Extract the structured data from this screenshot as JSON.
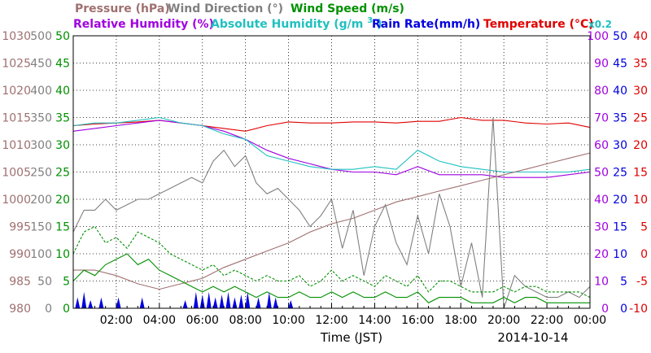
{
  "chart_data": {
    "type": "line",
    "date": "2014-10-14",
    "xlabel": "Time (JST)",
    "x_ticks": [
      "02:00",
      "04:00",
      "06:00",
      "08:00",
      "10:00",
      "12:00",
      "14:00",
      "16:00",
      "18:00",
      "20:00",
      "22:00",
      "00:00"
    ],
    "x_range_hours": [
      0,
      24
    ],
    "grid": true,
    "legend": {
      "row1": [
        {
          "label": "Pressure (hPa)",
          "color": "#a07070"
        },
        {
          "label": "Wind Direction (°)",
          "color": "#808080"
        },
        {
          "label": "Wind Speed (m/s)",
          "color": "#009000"
        }
      ],
      "row2": [
        {
          "label": "Relative Humidity (%)",
          "color": "#a000e0"
        },
        {
          "label": "Absolute Humidity (g/m",
          "sup": "3",
          "suffix": ")",
          "color": "#20c0c0"
        },
        {
          "label": "Rain Rate(mm/h)",
          "color": "#0000e0"
        },
        {
          "label": "Temperature (°C)",
          "color": "#e00000"
        },
        {
          "label": "x0.2",
          "color": "#20c0c0"
        }
      ]
    },
    "axes": {
      "pressure": {
        "ticks": [
          "1030",
          "1025",
          "1020",
          "1015",
          "1010",
          "1005",
          "1000",
          "995",
          "990",
          "985",
          "980"
        ],
        "range": [
          980,
          1030
        ],
        "color": "#a07070"
      },
      "wind_direction": {
        "ticks": [
          "500",
          "450",
          "400",
          "350",
          "300",
          "250",
          "200",
          "150",
          "100",
          "50",
          "0"
        ],
        "range": [
          0,
          500
        ],
        "color": "#808080"
      },
      "wind_speed": {
        "ticks": [
          "50",
          "45",
          "40",
          "35",
          "30",
          "25",
          "20",
          "15",
          "10",
          "5",
          "0"
        ],
        "range": [
          0,
          50
        ],
        "color": "#009000"
      },
      "humidity": {
        "ticks": [
          "100",
          "90",
          "80",
          "70",
          "60",
          "50",
          "40",
          "30",
          "20",
          "10",
          "0"
        ],
        "range": [
          0,
          100
        ],
        "color": "#a000e0"
      },
      "rain_rate": {
        "ticks": [
          "50",
          "45",
          "40",
          "35",
          "30",
          "25",
          "20",
          "15",
          "10",
          "5",
          "0"
        ],
        "range": [
          0,
          50
        ],
        "color": "#0000e0"
      },
      "temperature": {
        "ticks": [
          "40",
          "35",
          "30",
          "25",
          "20",
          "15",
          "10",
          "5",
          "0",
          "-5",
          "-10"
        ],
        "range": [
          -10,
          40
        ],
        "color": "#e00000"
      }
    },
    "series": [
      {
        "name": "Temperature",
        "axis": "temperature",
        "color": "#e00000",
        "x": [
          0,
          1,
          2,
          3,
          4,
          5,
          6,
          7,
          8,
          9,
          10,
          11,
          12,
          13,
          14,
          15,
          16,
          17,
          18,
          19,
          20,
          21,
          22,
          23,
          24
        ],
        "y": [
          23.5,
          23.8,
          24.0,
          24.2,
          24.5,
          24.0,
          23.5,
          23.0,
          22.5,
          23.5,
          24.2,
          24.0,
          24.0,
          24.2,
          24.2,
          24.0,
          24.3,
          24.3,
          25.0,
          24.5,
          24.5,
          24.0,
          23.8,
          24.0,
          23.2
        ]
      },
      {
        "name": "Relative Humidity",
        "axis": "humidity",
        "color": "#a000e0",
        "x": [
          0,
          1,
          2,
          3,
          4,
          5,
          6,
          7,
          8,
          9,
          10,
          11,
          12,
          13,
          14,
          15,
          16,
          17,
          18,
          19,
          20,
          21,
          22,
          23,
          24
        ],
        "y": [
          65,
          66,
          67,
          68,
          69,
          68,
          67,
          65,
          62,
          58,
          55,
          53,
          51,
          50,
          50,
          49,
          52,
          49,
          49,
          49,
          48,
          48,
          48,
          49,
          50
        ]
      },
      {
        "name": "Absolute Humidity",
        "axis": "wind_speed",
        "color": "#20c0c0",
        "x": [
          0,
          1,
          2,
          3,
          4,
          5,
          6,
          7,
          8,
          9,
          10,
          11,
          12,
          13,
          14,
          15,
          16,
          17,
          18,
          19,
          20,
          21,
          22,
          23,
          24
        ],
        "y": [
          33.5,
          34,
          34,
          34.5,
          35,
          34,
          33.5,
          32,
          31,
          28,
          27,
          26,
          25.5,
          25.5,
          26,
          25.5,
          29,
          27,
          26,
          25.5,
          25,
          25,
          25,
          25,
          25.5
        ]
      },
      {
        "name": "Pressure",
        "axis": "pressure",
        "color": "#a07070",
        "x": [
          0,
          1,
          2,
          3,
          4,
          5,
          6,
          7,
          8,
          9,
          10,
          11,
          12,
          13,
          14,
          15,
          16,
          17,
          18,
          19,
          20,
          21,
          22,
          23,
          24
        ],
        "y": [
          987,
          987,
          986,
          984.5,
          983.5,
          984.5,
          985.5,
          987.5,
          989,
          990.5,
          992,
          994,
          995.5,
          996.5,
          998,
          999.5,
          1000.5,
          1001.5,
          1002.5,
          1003.5,
          1004.5,
          1005.5,
          1006.5,
          1007.5,
          1008.5
        ]
      },
      {
        "name": "Wind Direction",
        "axis": "wind_direction",
        "color": "#808080",
        "x": [
          0,
          0.5,
          1,
          1.5,
          2,
          2.5,
          3,
          3.5,
          4,
          4.5,
          5,
          5.5,
          6,
          6.5,
          7,
          7.5,
          8,
          8.5,
          9,
          9.5,
          10,
          10.5,
          11,
          11.5,
          12,
          12.5,
          13,
          13.5,
          14,
          14.5,
          15,
          15.5,
          16,
          16.5,
          17,
          17.5,
          18,
          18.5,
          19,
          19.5,
          20,
          20.5,
          21,
          21.5,
          22,
          22.5,
          23,
          23.5,
          24
        ],
        "y": [
          140,
          180,
          180,
          200,
          180,
          190,
          200,
          200,
          210,
          220,
          230,
          240,
          230,
          270,
          290,
          260,
          280,
          230,
          210,
          220,
          200,
          180,
          150,
          170,
          200,
          110,
          180,
          60,
          150,
          190,
          120,
          80,
          170,
          100,
          210,
          150,
          40,
          120,
          20,
          350,
          0,
          60,
          40,
          30,
          20,
          20,
          30,
          20,
          40
        ]
      },
      {
        "name": "Wind Speed",
        "axis": "wind_speed",
        "color": "#009000",
        "x": [
          0,
          0.5,
          1,
          1.5,
          2,
          2.5,
          3,
          3.5,
          4,
          4.5,
          5,
          5.5,
          6,
          6.5,
          7,
          7.5,
          8,
          8.5,
          9,
          9.5,
          10,
          10.5,
          11,
          11.5,
          12,
          12.5,
          13,
          13.5,
          14,
          14.5,
          15,
          15.5,
          16,
          16.5,
          17,
          17.5,
          18,
          18.5,
          19,
          19.5,
          20,
          20.5,
          21,
          21.5,
          22,
          22.5,
          23,
          23.5,
          24
        ],
        "y": [
          5,
          7,
          6,
          8,
          9,
          10,
          8,
          9,
          7,
          6,
          5,
          4,
          3,
          4,
          3,
          4,
          3,
          2,
          3,
          2,
          2,
          3,
          2,
          2,
          3,
          2,
          3,
          2,
          2,
          3,
          2,
          2,
          3,
          1,
          2,
          2,
          2,
          1,
          1,
          1,
          2,
          1,
          2,
          2,
          1,
          1,
          1,
          1,
          1
        ]
      },
      {
        "name": "Wind Gust",
        "axis": "wind_speed",
        "color": "#009000",
        "x": [
          0,
          0.5,
          1,
          1.5,
          2,
          2.5,
          3,
          3.5,
          4,
          4.5,
          5,
          5.5,
          6,
          6.5,
          7,
          7.5,
          8,
          8.5,
          9,
          9.5,
          10,
          10.5,
          11,
          11.5,
          12,
          12.5,
          13,
          13.5,
          14,
          14.5,
          15,
          15.5,
          16,
          16.5,
          17,
          17.5,
          18,
          18.5,
          19,
          19.5,
          20,
          20.5,
          21,
          21.5,
          22,
          22.5,
          23,
          23.5,
          24
        ],
        "y": [
          10,
          14,
          15,
          12,
          13,
          11,
          14,
          13,
          12,
          10,
          9,
          8,
          7,
          8,
          6,
          7,
          6,
          5,
          6,
          5,
          5,
          6,
          4,
          5,
          7,
          5,
          6,
          5,
          4,
          6,
          5,
          4,
          6,
          3,
          5,
          5,
          4,
          3,
          3,
          3,
          4,
          3,
          4,
          4,
          3,
          3,
          3,
          3,
          2
        ]
      },
      {
        "name": "Rain Rate",
        "axis": "rain_rate",
        "color": "#0000e0",
        "kind": "spikes",
        "x": [
          0.2,
          0.5,
          0.8,
          1.3,
          2.1,
          3.2,
          5.2,
          5.7,
          6.0,
          6.3,
          6.6,
          6.9,
          7.2,
          7.5,
          7.8,
          8.1,
          8.6,
          9.1,
          9.4,
          10.1
        ],
        "y": [
          2,
          3,
          1.5,
          2,
          2,
          2,
          1.5,
          3,
          2.5,
          3,
          2,
          2.5,
          3,
          2,
          2.5,
          3,
          2,
          3,
          2,
          1.5
        ]
      }
    ]
  }
}
